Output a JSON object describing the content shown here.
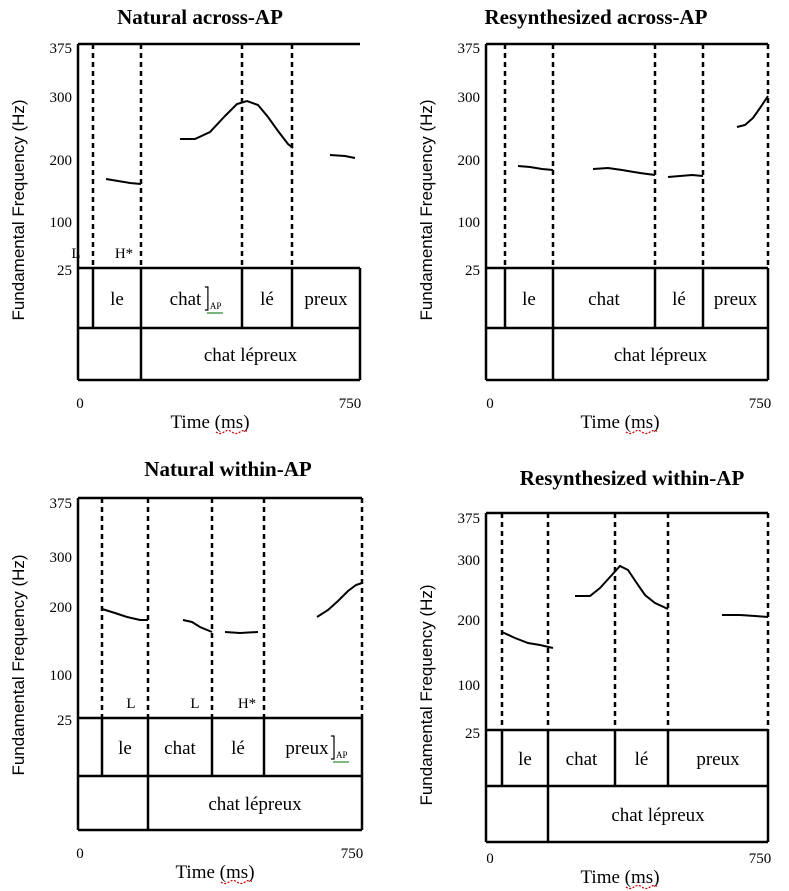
{
  "common": {
    "y_label": "Fundamental Frequency (Hz)",
    "x_label": "Time (",
    "x_label_unit": "ms",
    "x_label_end": ")",
    "y_ticks": [
      "375",
      "300",
      "200",
      "100",
      "25"
    ],
    "x_ticks": [
      "0",
      "750"
    ],
    "phrase": "chat lépreux"
  },
  "panels": [
    {
      "title": "Natural across-AP",
      "words": [
        "le",
        "chat",
        "lé",
        "preux"
      ],
      "ap_word_index": 1,
      "ap_label": "AP",
      "tones": [
        {
          "label": "L",
          "at_boundary": 1
        },
        {
          "label": "H*",
          "at_boundary": 2
        }
      ]
    },
    {
      "title": "Resynthesized across-AP",
      "words": [
        "le",
        "chat",
        "lé",
        "preux"
      ],
      "ap_word_index": -1,
      "tones": []
    },
    {
      "title": "Natural within-AP",
      "words": [
        "le",
        "chat",
        "lé",
        "preux"
      ],
      "ap_word_index": 3,
      "ap_label": "AP",
      "tones": [
        {
          "label": "L",
          "at_boundary": 2
        },
        {
          "label": "L",
          "at_boundary": 3
        },
        {
          "label": "H*",
          "at_boundary": 4
        }
      ]
    },
    {
      "title": "Resynthesized within-AP",
      "words": [
        "le",
        "chat",
        "lé",
        "preux"
      ],
      "ap_word_index": -1,
      "tones": []
    }
  ]
}
